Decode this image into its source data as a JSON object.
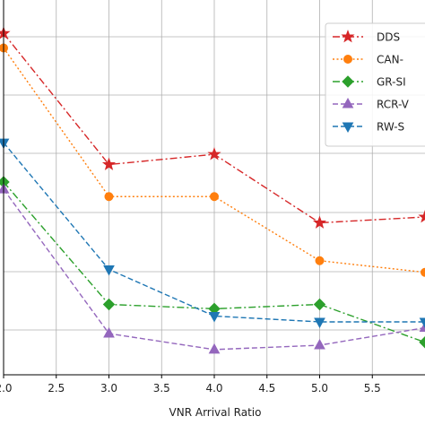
{
  "chart_data": {
    "type": "line",
    "xlabel": "VNR Arrival Ratio",
    "ylabel": "",
    "title": "",
    "xlim": [
      2.0,
      6.0
    ],
    "ylim": [
      0,
      1
    ],
    "x_tick_labels": [
      "2.0",
      "2.5",
      "3.0",
      "3.5",
      "4.0",
      "4.5",
      "5.0",
      "5.5"
    ],
    "x_ticks": [
      2.0,
      2.5,
      3.0,
      3.5,
      4.0,
      4.5,
      5.0,
      5.5
    ],
    "y_ticks": [
      0.0,
      0.2,
      0.4,
      0.6,
      0.8,
      1.0
    ],
    "grid": true,
    "legend_position": "upper right",
    "series": [
      {
        "name": "DDS",
        "color": "#d62728",
        "linestyle": "dashdot",
        "marker": "star",
        "x": [
          2.0,
          3.0,
          4.0,
          5.0,
          6.0
        ],
        "y": [
          1.11,
          0.66,
          0.695,
          0.46,
          0.48
        ]
      },
      {
        "name": "CAN-",
        "color": "#ff7f0e",
        "linestyle": "dotted",
        "marker": "circle",
        "x": [
          2.0,
          3.0,
          4.0,
          5.0,
          6.0
        ],
        "y": [
          1.06,
          0.55,
          0.55,
          0.33,
          0.29
        ]
      },
      {
        "name": "GR-SI",
        "color": "#2ca02c",
        "linestyle": "dashdot",
        "marker": "diamond",
        "x": [
          2.0,
          3.0,
          4.0,
          5.0,
          6.0
        ],
        "y": [
          0.6,
          0.18,
          0.165,
          0.18,
          0.05
        ]
      },
      {
        "name": "RCR-V",
        "color": "#9467bd",
        "linestyle": "dashed",
        "marker": "triangle-up",
        "x": [
          2.0,
          3.0,
          4.0,
          5.0,
          6.0
        ],
        "y": [
          0.575,
          0.08,
          0.025,
          0.04,
          0.1
        ]
      },
      {
        "name": "RW-S",
        "color": "#1f77b4",
        "linestyle": "dashed",
        "marker": "triangle-down",
        "x": [
          2.0,
          3.0,
          4.0,
          5.0,
          6.0
        ],
        "y": [
          0.735,
          0.3,
          0.14,
          0.12,
          0.12
        ]
      }
    ]
  }
}
